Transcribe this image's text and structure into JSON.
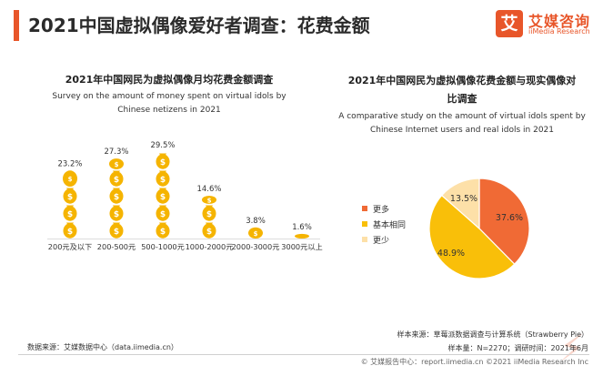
{
  "header": {
    "title": "2021中国虚拟偶像爱好者调查：花费金额",
    "logo_mark": "艾",
    "logo_cn": "艾媒咨询",
    "logo_en": "iiMedia Research",
    "accent_color": "#e8562a"
  },
  "chart_data": [
    {
      "type": "bar",
      "title": "2021年中国网民为虚拟偶像月均花费金额调查",
      "subtitle": "Survey on the amount of money spent on virtual idols by Chinese netizens in 2021",
      "categories": [
        "200元及以下",
        "200-500元",
        "500-1000元",
        "1000-2000元",
        "2000-3000元",
        "3000元以上"
      ],
      "values": [
        23.2,
        27.3,
        29.5,
        14.6,
        3.8,
        1.6
      ],
      "value_labels": [
        "23.2%",
        "27.3%",
        "29.5%",
        "14.6%",
        "3.8%",
        "1.6%"
      ],
      "unit": "%",
      "mark": "stack-of-coin-bags",
      "color": "#f5b400"
    },
    {
      "type": "pie",
      "title": "2021年中国网民为虚拟偶像花费金额与现实偶像对比调查",
      "subtitle": "A comparative study on the amount of virtual idols spent by Chinese Internet users and real idols in 2021",
      "slices": [
        {
          "label": "更多",
          "value": 37.6,
          "value_label": "37.6%",
          "color": "#f06a35"
        },
        {
          "label": "基本相同",
          "value": 48.9,
          "value_label": "48.9%",
          "color": "#f9bf09"
        },
        {
          "label": "更少",
          "value": 13.5,
          "value_label": "13.5%",
          "color": "#fde0a8"
        }
      ]
    }
  ],
  "footer": {
    "source_left": "数据来源：艾媒数据中心（data.iimedia.cn）",
    "note_sample_source": "样本来源：草莓派数据调查与计算系统（Strawberry Pie）",
    "note_sample_size": "样本量：N=2270；调研时间：2021年6月",
    "bottom": "© 艾媒报告中心：report.iimedia.cn ©2021 iiMedia Research Inc"
  }
}
